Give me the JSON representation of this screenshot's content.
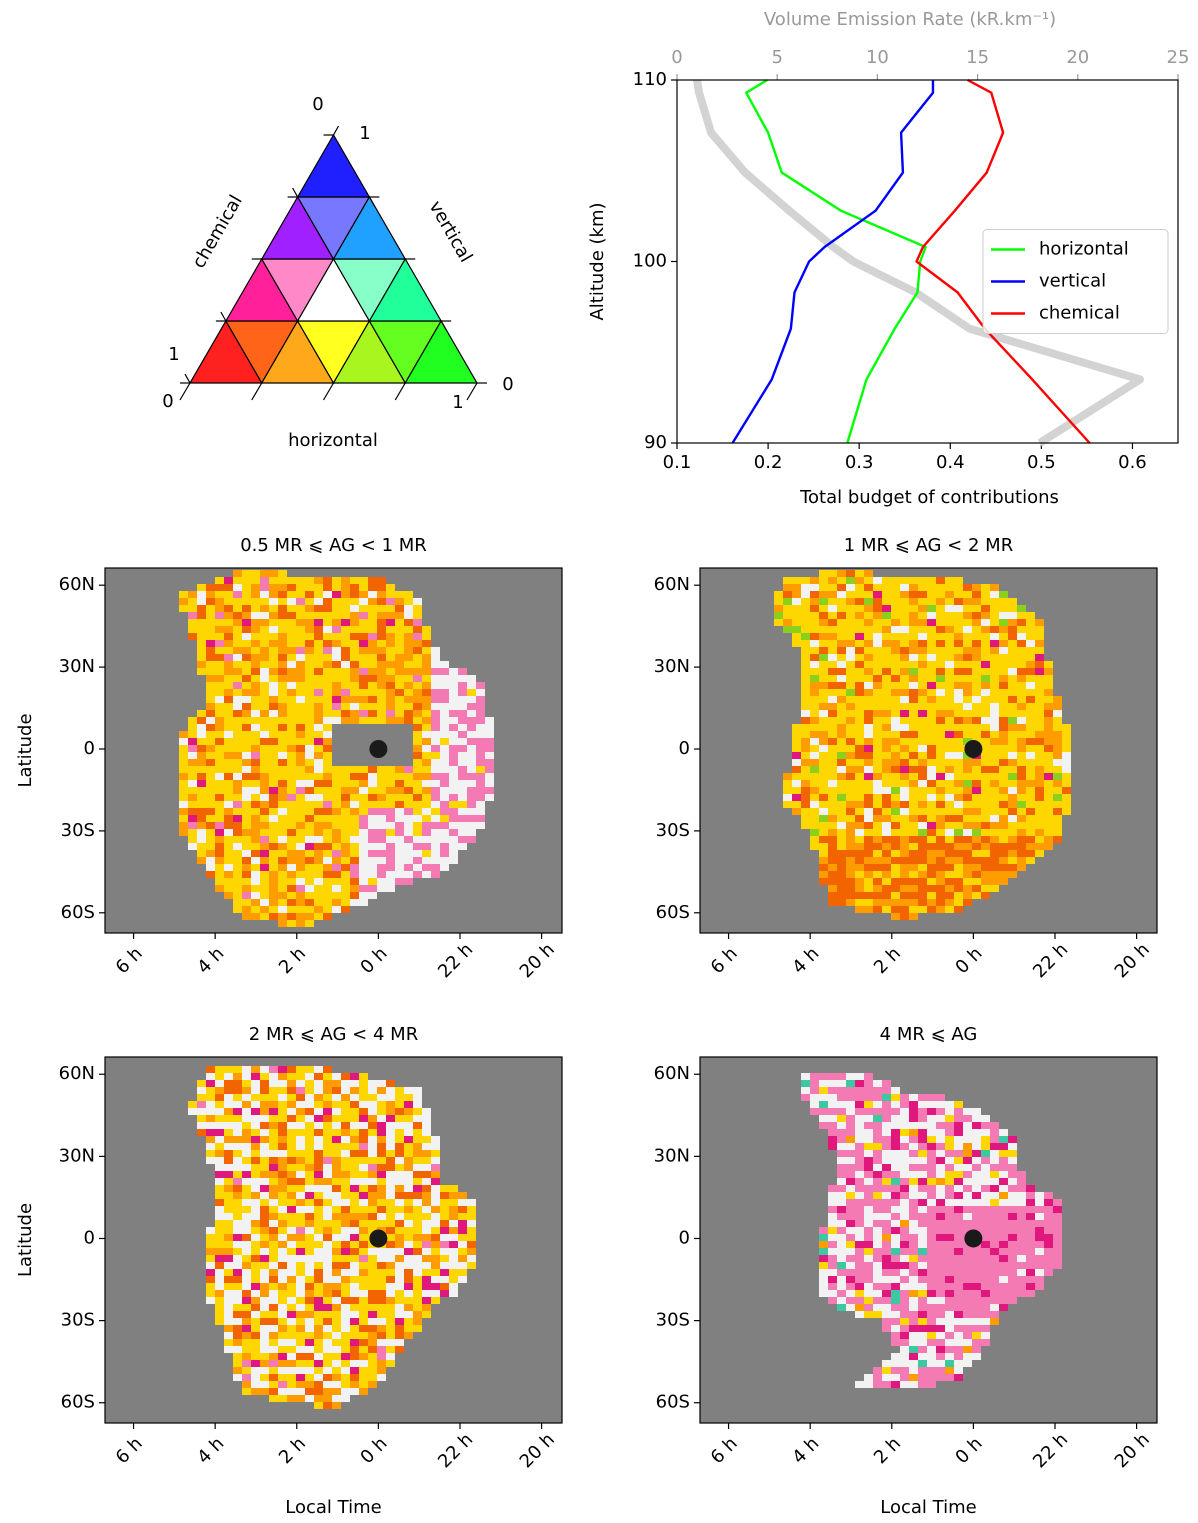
{
  "ternary": {
    "apex_zero": "0",
    "apex_one": "1",
    "left_label": "chemical",
    "right_label": "vertical",
    "bottom_label": "horizontal",
    "left_one": "1",
    "left_zero": "0",
    "right_zero": "0",
    "bottom_one": "1"
  },
  "chart_data": [
    {
      "type": "line",
      "x2label": "Volume Emission Rate (kR.km⁻¹)",
      "xlabel": "Total budget of contributions",
      "ylabel": "Altitude (km)",
      "y": [
        90,
        93.5,
        96.3,
        98.3,
        100,
        100.8,
        102.8,
        104.9,
        107.1,
        109.3,
        110
      ],
      "xlim": [
        0.1,
        0.65
      ],
      "xticks": [
        0.1,
        0.2,
        0.3,
        0.4,
        0.5,
        0.6
      ],
      "x2lim": [
        0,
        25
      ],
      "x2ticks": [
        0,
        5,
        10,
        15,
        20,
        25
      ],
      "ylim": [
        90,
        110
      ],
      "yticks": [
        90,
        100,
        110
      ],
      "legend": "center right",
      "series": [
        {
          "name": "horizontal",
          "color": "#00ff00",
          "values": [
            0.287,
            0.308,
            0.339,
            0.364,
            0.367,
            0.373,
            0.28,
            0.215,
            0.2,
            0.176,
            0.199
          ]
        },
        {
          "name": "vertical",
          "color": "#0000ff",
          "values": [
            0.161,
            0.204,
            0.225,
            0.229,
            0.245,
            0.262,
            0.318,
            0.348,
            0.346,
            0.381,
            0.381
          ]
        },
        {
          "name": "chemical",
          "color": "#ff0000",
          "values": [
            0.553,
            0.49,
            0.438,
            0.408,
            0.363,
            0.37,
            0.405,
            0.44,
            0.458,
            0.445,
            0.419
          ]
        },
        {
          "color": "#d3d3d3",
          "axis": "x2",
          "values": [
            18.1,
            23.1,
            14.6,
            11.9,
            8.8,
            7.8,
            5.6,
            3.4,
            1.7,
            1.1,
            1.0
          ]
        }
      ]
    },
    {
      "type": "map",
      "title": "0.5 MR ⩽ AG < 1 MR",
      "ylabel": "Latitude",
      "xlim": [
        6.7,
        -4.5
      ],
      "xticks": [
        {
          "value": 6,
          "label": "6 h"
        },
        {
          "value": 4,
          "label": "4 h"
        },
        {
          "value": 2,
          "label": "2 h"
        },
        {
          "value": 0,
          "label": "0 h"
        },
        {
          "value": -2,
          "label": "22 h"
        },
        {
          "value": -4,
          "label": "20 h"
        }
      ],
      "ylim": [
        -67.4,
        66.3
      ],
      "yticks": [
        {
          "value": 60,
          "label": "60N"
        },
        {
          "value": 30,
          "label": "30N"
        },
        0,
        {
          "value": -30,
          "label": "30S"
        },
        {
          "value": -60,
          "label": "60S"
        }
      ],
      "point": [
        0,
        0
      ]
    },
    {
      "type": "map",
      "title": "1 MR ⩽ AG < 2 MR",
      "xlim": [
        6.7,
        -4.5
      ],
      "xticks": [
        {
          "value": 6,
          "label": "6 h"
        },
        {
          "value": 4,
          "label": "4 h"
        },
        {
          "value": 2,
          "label": "2 h"
        },
        {
          "value": 0,
          "label": "0 h"
        },
        {
          "value": -2,
          "label": "22 h"
        },
        {
          "value": -4,
          "label": "20 h"
        }
      ],
      "ylim": [
        -67.4,
        66.3
      ],
      "yticks": [
        {
          "value": 60,
          "label": "60N"
        },
        {
          "value": 30,
          "label": "30N"
        },
        0,
        {
          "value": -30,
          "label": "30S"
        },
        {
          "value": -60,
          "label": "60S"
        }
      ],
      "point": [
        0,
        0
      ]
    },
    {
      "type": "map",
      "title": "2 MR ⩽ AG < 4 MR",
      "ylabel": "Latitude",
      "xlabel": "Local Time",
      "xlim": [
        6.7,
        -4.5
      ],
      "xticks": [
        {
          "value": 6,
          "label": "6 h"
        },
        {
          "value": 4,
          "label": "4 h"
        },
        {
          "value": 2,
          "label": "2 h"
        },
        {
          "value": 0,
          "label": "0 h"
        },
        {
          "value": -2,
          "label": "22 h"
        },
        {
          "value": -4,
          "label": "20 h"
        }
      ],
      "ylim": [
        -67.4,
        66.3
      ],
      "yticks": [
        {
          "value": 60,
          "label": "60N"
        },
        {
          "value": 30,
          "label": "30N"
        },
        0,
        {
          "value": -30,
          "label": "30S"
        },
        {
          "value": -60,
          "label": "60S"
        }
      ],
      "point": [
        0,
        0
      ]
    },
    {
      "type": "map",
      "title": "4 MR ⩽ AG",
      "xlabel": "Local Time",
      "xlim": [
        6.7,
        -4.5
      ],
      "xticks": [
        {
          "value": 6,
          "label": "6 h"
        },
        {
          "value": 4,
          "label": "4 h"
        },
        {
          "value": 2,
          "label": "2 h"
        },
        {
          "value": 0,
          "label": "0 h"
        },
        {
          "value": -2,
          "label": "22 h"
        },
        {
          "value": -4,
          "label": "20 h"
        }
      ],
      "ylim": [
        -67.4,
        66.3
      ],
      "yticks": [
        {
          "value": 60,
          "label": "60N"
        },
        {
          "value": 30,
          "label": "30N"
        },
        0,
        {
          "value": -30,
          "label": "30S"
        },
        {
          "value": -60,
          "label": "60S"
        }
      ],
      "point": [
        0,
        0
      ]
    }
  ]
}
